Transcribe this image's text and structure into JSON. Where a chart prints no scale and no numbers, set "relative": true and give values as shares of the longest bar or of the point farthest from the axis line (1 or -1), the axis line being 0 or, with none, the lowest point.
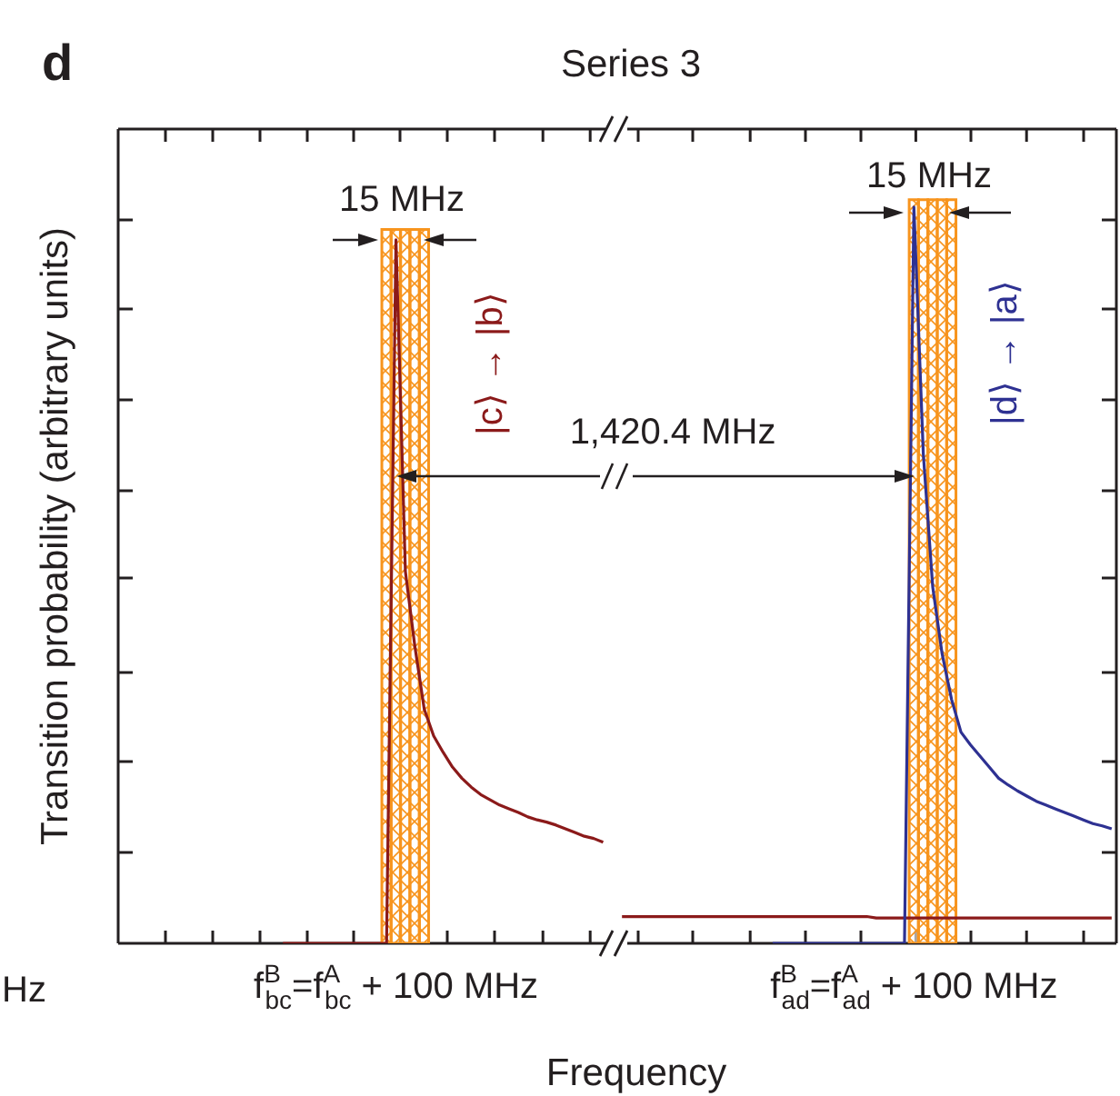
{
  "chart_data": {
    "type": "line",
    "title": "Series 3",
    "xlabel": "Frequency",
    "ylabel": "Transition probability (arbitrary units)",
    "relative": true,
    "categories": [
      null,
      null,
      null,
      null,
      null,
      null,
      null,
      null,
      null,
      null,
      null,
      null,
      null,
      null,
      null,
      null,
      null,
      null,
      null,
      null,
      null,
      null,
      null,
      null,
      null,
      null,
      null,
      null,
      null,
      "f$^{B}$$_{bc}$=f$^{A}$$_{bc}$ + 100 MHz",
      null,
      null,
      null,
      null,
      null,
      null,
      null,
      null,
      null,
      null,
      null,
      null,
      null,
      null,
      null,
      null,
      null,
      null,
      null,
      null,
      null,
      null,
      null,
      null,
      null,
      null,
      null,
      null,
      null,
      null,
      null,
      null,
      null,
      null,
      null,
      null,
      null,
      null,
      null,
      null,
      null,
      null,
      null,
      null,
      null,
      null,
      null,
      null,
      null,
      null,
      null,
      null,
      null,
      null,
      "f$^{B}$$_{ad}$=f$^{A}$$_{ad}$ + 100 MHz",
      null,
      null,
      null,
      null,
      null,
      null,
      null,
      null,
      null,
      null,
      null,
      null,
      null,
      null,
      null,
      null,
      null,
      null,
      null,
      null,
      null
    ],
    "series": [
      {
        "type": "bar",
        "color": "#f7941d",
        "values": [
          null,
          null,
          null,
          null,
          null,
          null,
          null,
          null,
          null,
          null,
          null,
          null,
          null,
          null,
          null,
          null,
          null,
          null,
          null,
          null,
          null,
          null,
          null,
          null,
          null,
          null,
          null,
          null,
          0.96,
          0.96,
          0.96,
          0.96,
          0.96,
          null,
          null,
          null,
          null,
          null,
          null,
          null,
          null,
          null,
          null,
          null,
          null,
          null,
          null,
          null,
          null,
          null,
          null,
          null,
          null,
          null,
          null,
          null,
          null,
          null,
          null,
          null,
          null,
          null,
          null,
          null,
          null,
          null,
          null,
          null,
          null,
          null,
          null,
          null,
          null,
          null,
          null,
          null,
          null,
          null,
          null,
          null,
          null,
          null,
          null,
          null,
          1,
          1,
          1,
          1,
          1,
          null,
          null,
          null,
          null,
          null,
          null,
          null,
          null,
          null,
          null,
          null,
          null,
          null,
          null,
          null,
          null,
          null
        ]
      },
      {
        "color": "#8b1a1a",
        "values": [
          null,
          null,
          null,
          null,
          null,
          null,
          null,
          null,
          null,
          null,
          null,
          null,
          null,
          null,
          null,
          null,
          null,
          0,
          0,
          0,
          0,
          0,
          0,
          0,
          0,
          0,
          0,
          0,
          0,
          0.946,
          0.5,
          0.4,
          0.315,
          0.279,
          0.257,
          0.237,
          0.222,
          0.21,
          0.2,
          0.193,
          0.186,
          0.181,
          0.176,
          0.17,
          0.166,
          0.163,
          0.159,
          0.154,
          0.149,
          0.144,
          0.141,
          0.136,
          null,
          0.036,
          0.036,
          0.036,
          0.036,
          0.036,
          0.036,
          0.036,
          0.036,
          0.036,
          0.036,
          0.036,
          0.036,
          0.036,
          0.036,
          0.036,
          0.036,
          0.036,
          0.036,
          0.036,
          0.036,
          0.036,
          0.036,
          0.036,
          0.036,
          0.036,
          0.036,
          0.036,
          0.034,
          0.034,
          0.034,
          0.034,
          0.034,
          0.034,
          0.034,
          0.034,
          0.034,
          0.034,
          0.034,
          0.034,
          0.034,
          0.034,
          0.034,
          0.034,
          0.034,
          0.034,
          0.034,
          0.034,
          0.034,
          0.034,
          0.034,
          0.034,
          0.034,
          0.034
        ]
      },
      {
        "color": "#2e3192",
        "values": [
          null,
          null,
          null,
          null,
          null,
          null,
          null,
          null,
          null,
          null,
          null,
          null,
          null,
          null,
          null,
          null,
          null,
          null,
          null,
          null,
          null,
          null,
          null,
          null,
          null,
          null,
          null,
          null,
          null,
          null,
          null,
          null,
          null,
          null,
          null,
          null,
          null,
          null,
          null,
          null,
          null,
          null,
          null,
          null,
          null,
          null,
          null,
          null,
          null,
          null,
          null,
          null,
          null,
          null,
          null,
          null,
          null,
          null,
          null,
          null,
          null,
          null,
          null,
          null,
          null,
          null,
          null,
          null,
          null,
          0,
          0,
          0,
          0,
          0,
          0,
          0,
          0,
          0,
          0,
          0,
          0,
          0,
          0,
          0,
          0.99,
          0.658,
          0.479,
          0.389,
          0.328,
          0.284,
          0.267,
          0.252,
          0.237,
          0.222,
          0.213,
          0.205,
          0.198,
          0.191,
          0.186,
          0.181,
          0.176,
          0.171,
          0.166,
          0.161,
          0.158,
          0.154
        ]
      }
    ],
    "annotations": [
      "d",
      "15 MHz",
      "15 MHz",
      "1,420.4 MHz",
      "|c⟩ → |b⟩",
      "|d⟩ → |a⟩",
      "Hz"
    ]
  }
}
